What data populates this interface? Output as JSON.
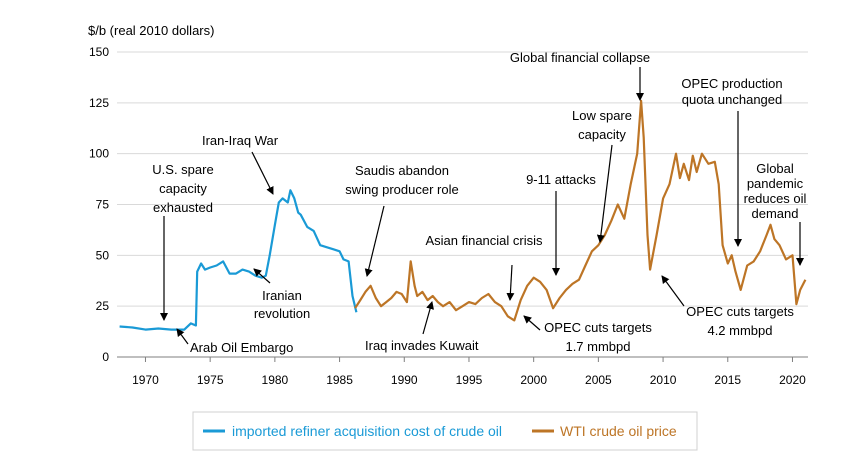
{
  "chart_data": {
    "type": "line",
    "ylabel": "$/b (real 2010 dollars)",
    "xlim": [
      1967.8,
      2021.2
    ],
    "ylim": [
      0,
      150
    ],
    "x_ticks": [
      1970,
      1975,
      1980,
      1985,
      1990,
      1995,
      2000,
      2005,
      2010,
      2015,
      2020
    ],
    "y_ticks": [
      0,
      25,
      50,
      75,
      100,
      125,
      150
    ],
    "grid": "horizontal",
    "legend": "bottom",
    "series": [
      {
        "name": "imported refiner acquisition cost of crude oil",
        "color": "#1a9ad6",
        "x": [
          1968,
          1969,
          1970,
          1971,
          1972,
          1973,
          1973.5,
          1973.9,
          1974,
          1974.3,
          1974.6,
          1975,
          1975.5,
          1976,
          1976.5,
          1977,
          1977.5,
          1978,
          1978.5,
          1979,
          1979.3,
          1979.6,
          1980,
          1980.3,
          1980.6,
          1981,
          1981.2,
          1981.5,
          1981.8,
          1982,
          1982.5,
          1983,
          1983.5,
          1984,
          1984.5,
          1985,
          1985.3,
          1985.7,
          1986,
          1986.3
        ],
        "y": [
          15,
          14.5,
          13.5,
          14,
          13.5,
          13.5,
          16.5,
          15.5,
          42,
          46,
          43,
          44,
          45,
          47,
          41,
          41,
          43,
          42,
          40,
          39,
          40,
          50,
          65,
          76,
          78,
          76,
          82,
          78,
          71,
          70,
          64,
          62,
          55,
          54,
          53,
          52,
          48,
          47,
          30,
          22
        ]
      },
      {
        "name": "WTI crude oil price",
        "color": "#bd7526",
        "x": [
          1986.2,
          1986.6,
          1987,
          1987.4,
          1987.8,
          1988.2,
          1988.6,
          1989,
          1989.4,
          1989.8,
          1990.2,
          1990.5,
          1990.8,
          1991,
          1991.4,
          1991.8,
          1992.2,
          1992.6,
          1993,
          1993.5,
          1994,
          1994.5,
          1995,
          1995.5,
          1996,
          1996.5,
          1997,
          1997.5,
          1998,
          1998.5,
          1999,
          1999.5,
          2000,
          2000.5,
          2001,
          2001.5,
          2002,
          2002.5,
          2003,
          2003.5,
          2004,
          2004.5,
          2005,
          2005.5,
          2006,
          2006.5,
          2007,
          2007.5,
          2008,
          2008.3,
          2008.5,
          2008.8,
          2009,
          2009.5,
          2010,
          2010.5,
          2011,
          2011.3,
          2011.6,
          2012,
          2012.3,
          2012.6,
          2013,
          2013.5,
          2014,
          2014.3,
          2014.6,
          2015,
          2015.3,
          2015.6,
          2016,
          2016.5,
          2017,
          2017.5,
          2018,
          2018.3,
          2018.6,
          2019,
          2019.5,
          2020,
          2020.3,
          2020.6,
          2021
        ],
        "y": [
          24,
          28,
          32,
          35,
          29,
          25,
          27,
          29,
          32,
          31,
          27,
          47,
          35,
          30,
          32,
          28,
          30,
          27,
          25,
          27,
          23,
          25,
          27,
          26,
          29,
          31,
          27,
          25,
          20,
          18,
          28,
          35,
          39,
          37,
          33,
          24,
          29,
          33,
          36,
          38,
          45,
          52,
          55,
          60,
          67,
          75,
          68,
          85,
          100,
          126,
          108,
          60,
          43,
          60,
          78,
          85,
          100,
          88,
          95,
          87,
          99,
          91,
          100,
          95,
          96,
          85,
          55,
          46,
          50,
          42,
          33,
          45,
          47,
          52,
          60,
          65,
          58,
          55,
          48,
          50,
          26,
          33,
          38
        ]
      }
    ],
    "annotations": [
      {
        "lines": [
          "U.S. spare",
          "capacity",
          "exhausted"
        ]
      },
      {
        "lines": [
          "Arab Oil Embargo"
        ]
      },
      {
        "lines": [
          "Iran-Iraq War"
        ]
      },
      {
        "lines": [
          "Iranian",
          "revolution"
        ]
      },
      {
        "lines": [
          "Saudis abandon",
          "swing producer role"
        ]
      },
      {
        "lines": [
          "Iraq invades Kuwait"
        ]
      },
      {
        "lines": [
          "Asian financial crisis"
        ]
      },
      {
        "lines": [
          "9-11 attacks"
        ]
      },
      {
        "lines": [
          "Low spare",
          "capacity"
        ]
      },
      {
        "lines": [
          "Global financial collapse"
        ]
      },
      {
        "lines": [
          "OPEC cuts targets",
          "1.7 mmbpd"
        ]
      },
      {
        "lines": [
          "OPEC production",
          "quota unchanged"
        ]
      },
      {
        "lines": [
          "Global",
          "pandemic",
          "reduces oil",
          "demand"
        ]
      },
      {
        "lines": [
          "OPEC cuts targets",
          "4.2 mmbpd"
        ]
      }
    ]
  }
}
